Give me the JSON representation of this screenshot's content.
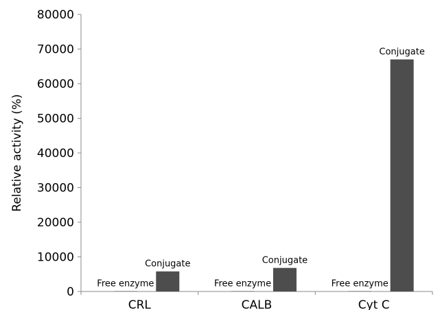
{
  "chart_data": {
    "type": "bar",
    "title": "",
    "xlabel": "",
    "ylabel": "Relative activity (%)",
    "ylim": [
      0,
      80000
    ],
    "yticks": [
      0,
      10000,
      20000,
      30000,
      40000,
      50000,
      60000,
      70000,
      80000
    ],
    "grid": false,
    "legend": "none",
    "categories": [
      "CRL",
      "CALB",
      "Cyt C"
    ],
    "series": [
      {
        "name": "",
        "values": [
          100,
          100,
          100
        ],
        "label": "Free enzyme",
        "color": "#4d4d4d"
      },
      {
        "name": "",
        "values": [
          5800,
          6800,
          67000
        ],
        "label": "Conjugate",
        "color": "#4d4d4d"
      }
    ]
  }
}
